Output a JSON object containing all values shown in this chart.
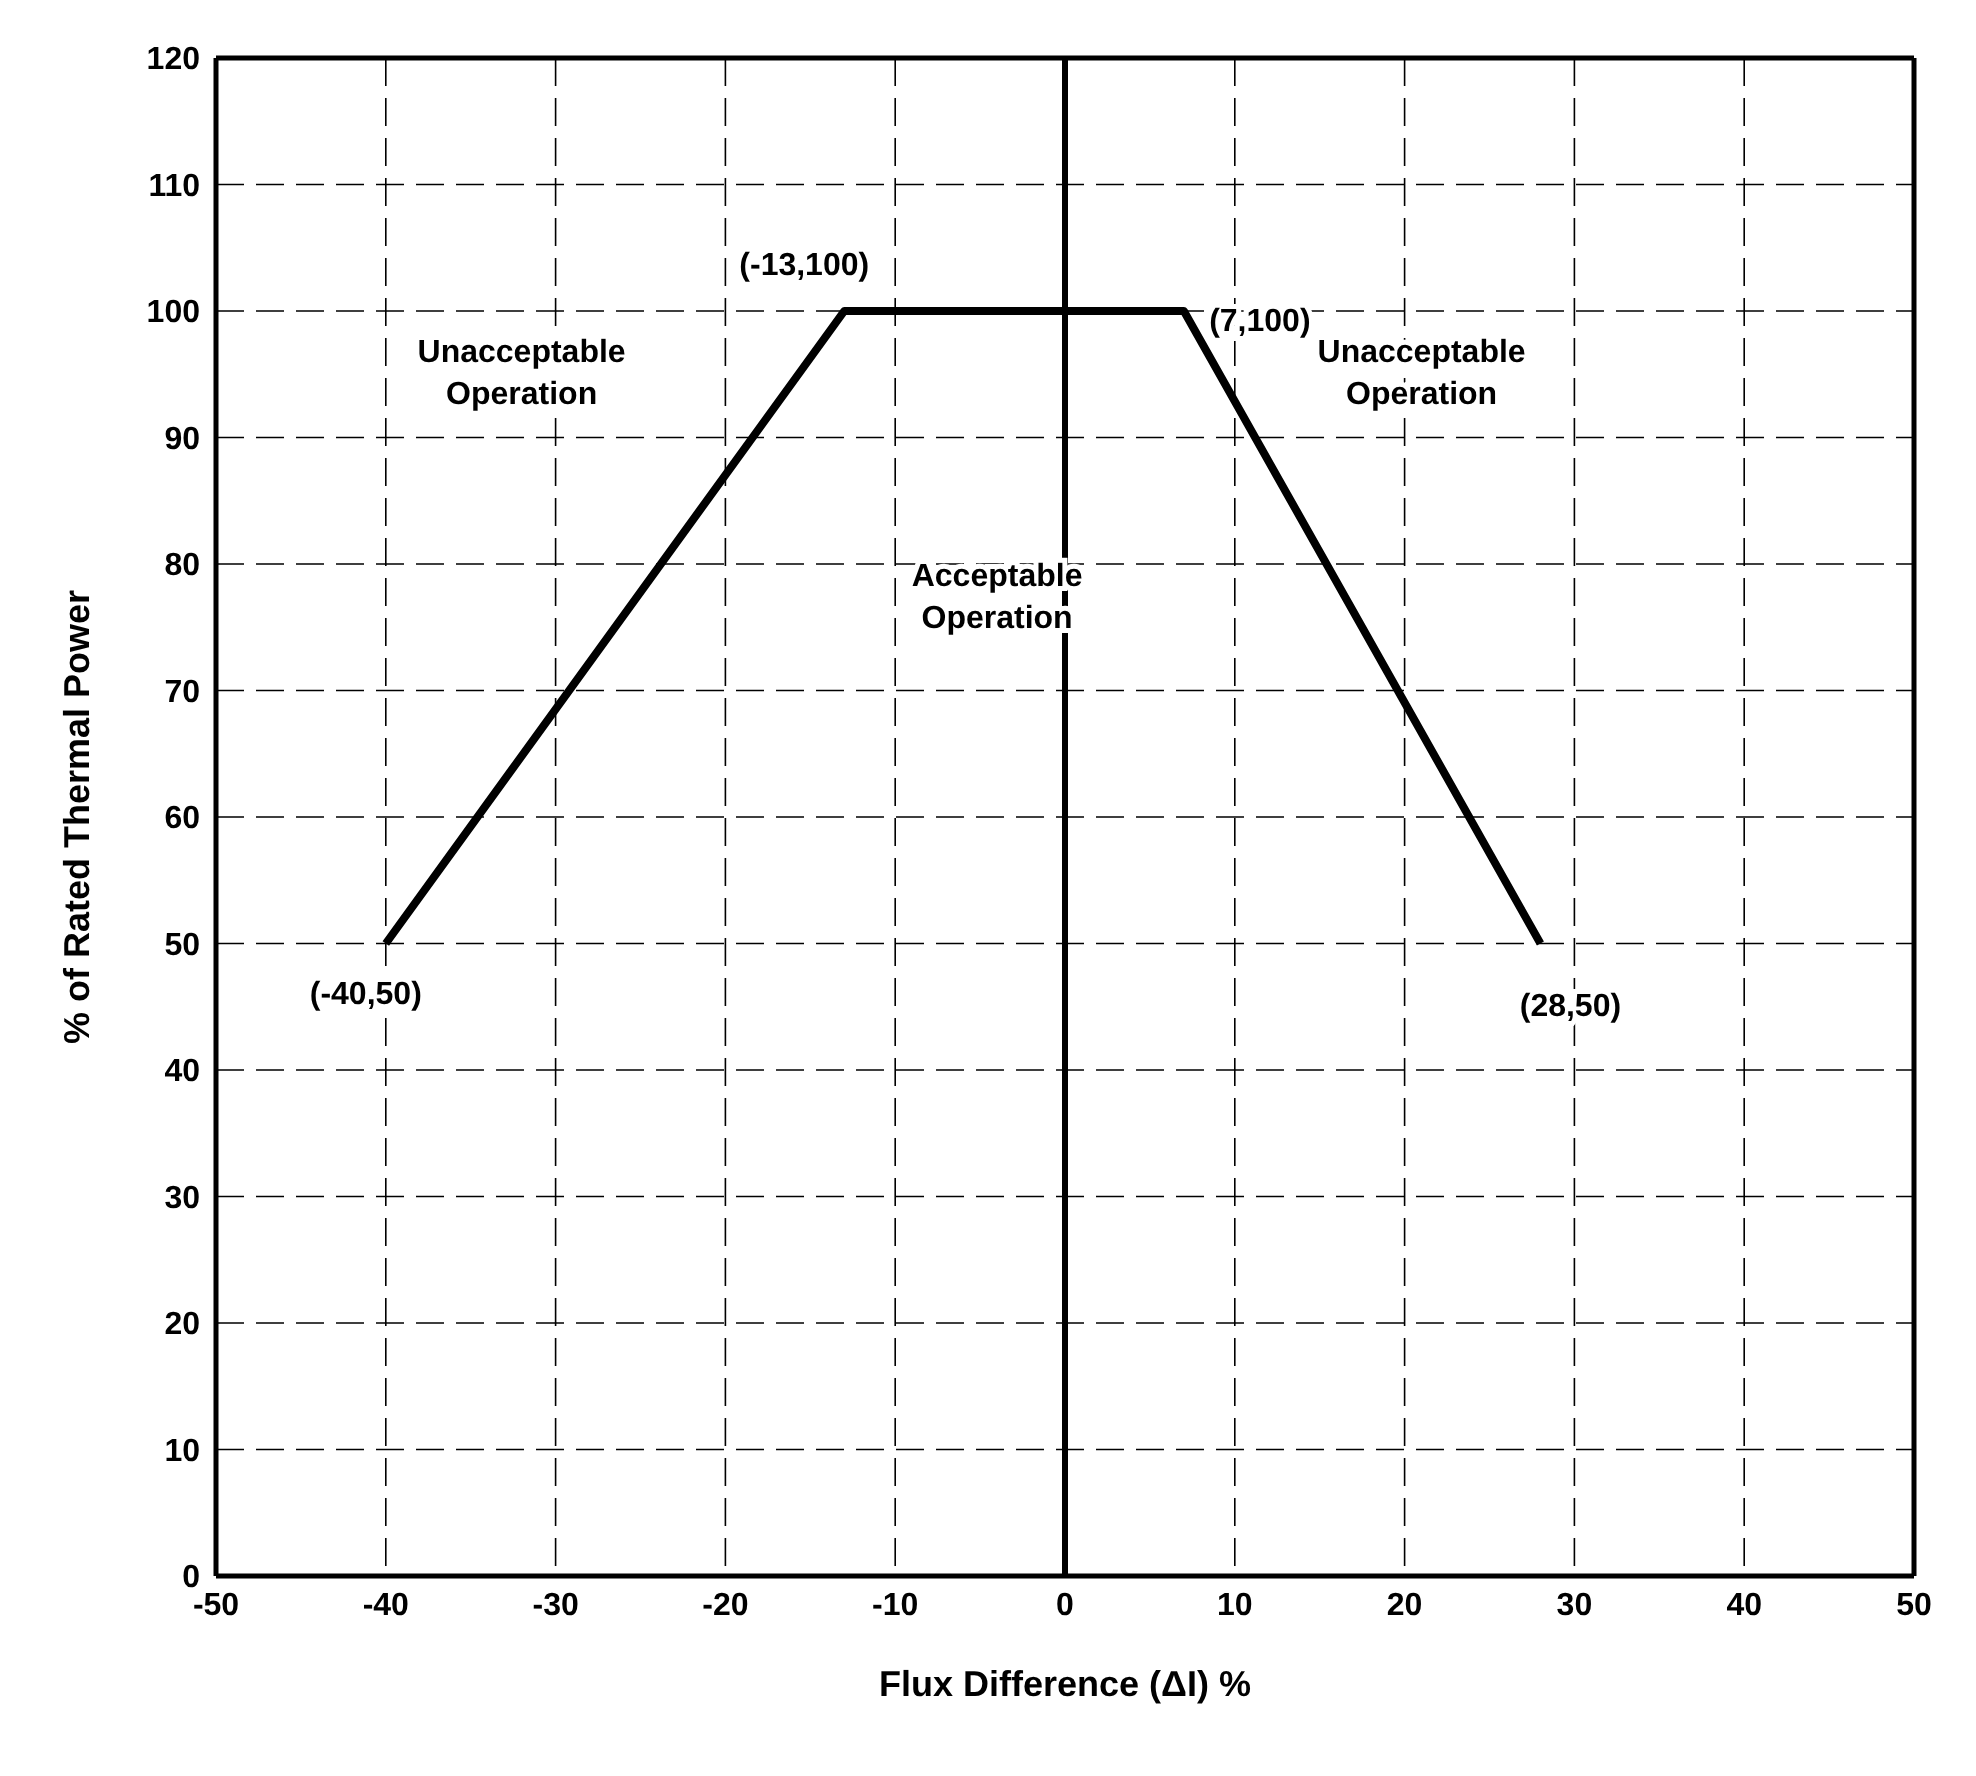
{
  "chart_data": {
    "type": "line",
    "xlabel": "Flux Difference (ΔI) %",
    "ylabel": "% of Rated Thermal Power",
    "x": [
      -40,
      -13,
      7,
      28
    ],
    "series": [
      {
        "color": "#000000",
        "values": [
          50,
          100,
          100,
          50
        ]
      }
    ],
    "xlim": [
      -50,
      50
    ],
    "xticks": [
      -50,
      -40,
      -30,
      -20,
      -10,
      0,
      10,
      20,
      30,
      40,
      50
    ],
    "ylim": [
      0,
      120
    ],
    "yticks": [
      0,
      10,
      20,
      30,
      40,
      50,
      60,
      70,
      80,
      90,
      100,
      110,
      120
    ],
    "grid": true,
    "marker": "none",
    "line_style": "solid",
    "legend": false,
    "ref_lines": [
      {
        "axis": "x",
        "value": 0,
        "color": "#000000"
      }
    ],
    "annotations": [
      {
        "text": "(-13,100)",
        "x": -13,
        "y": 100
      },
      {
        "text": "(7,100)",
        "x": 7,
        "y": 100
      },
      {
        "text": "(-40,50)",
        "x": -40,
        "y": 50
      },
      {
        "text": "(28,50)",
        "x": 28,
        "y": 50
      },
      "Unacceptable Operation",
      "Unacceptable Operation",
      "Acceptable Operation"
    ]
  }
}
